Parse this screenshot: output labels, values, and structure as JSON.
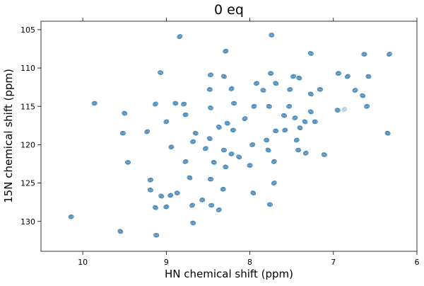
{
  "chart_data": {
    "type": "scatter",
    "subtype": "2D NMR contour spectrum (HSQC)",
    "title": "0 eq",
    "xlabel": "HN chemical shift (ppm)",
    "ylabel": "15N chemical shift (ppm)",
    "xlim": [
      10.5,
      6.0
    ],
    "ylim": [
      133.9,
      103.9
    ],
    "x_reversed": true,
    "y_reversed": true,
    "xticks": [
      "10",
      "9",
      "8",
      "7",
      "6"
    ],
    "xtick_values": [
      10,
      9,
      8,
      7,
      6
    ],
    "yticks": [
      "105",
      "110",
      "115",
      "120",
      "125",
      "130"
    ],
    "ytick_values": [
      105,
      110,
      115,
      120,
      125,
      130
    ],
    "grid": false,
    "colors": {
      "contour": "#3a7eb0",
      "weak_contour": "#a9cbe3"
    },
    "peaks": [
      [
        8.84,
        105.9
      ],
      [
        7.74,
        105.7
      ],
      [
        8.29,
        107.8
      ],
      [
        7.27,
        108.1
      ],
      [
        6.63,
        108.2
      ],
      [
        6.33,
        108.2
      ],
      [
        9.07,
        110.6
      ],
      [
        8.47,
        110.9
      ],
      [
        8.31,
        111.1
      ],
      [
        7.75,
        110.7
      ],
      [
        7.48,
        111.1
      ],
      [
        7.41,
        111.3
      ],
      [
        6.94,
        110.7
      ],
      [
        6.83,
        111.1
      ],
      [
        6.58,
        111.1
      ],
      [
        7.92,
        112.0
      ],
      [
        7.69,
        112.0
      ],
      [
        8.48,
        112.8
      ],
      [
        8.22,
        112.7
      ],
      [
        7.84,
        112.9
      ],
      [
        7.52,
        112.8
      ],
      [
        7.27,
        113.4
      ],
      [
        7.16,
        112.8
      ],
      [
        6.74,
        112.9
      ],
      [
        6.65,
        113.6
      ],
      [
        9.86,
        114.6
      ],
      [
        9.13,
        114.7
      ],
      [
        8.89,
        114.6
      ],
      [
        8.79,
        114.7
      ],
      [
        8.47,
        115.2
      ],
      [
        8.19,
        114.6
      ],
      [
        7.95,
        115.0
      ],
      [
        7.77,
        115.0
      ],
      [
        7.53,
        115.0
      ],
      [
        7.27,
        115.7
      ],
      [
        6.95,
        115.5
      ],
      [
        6.6,
        115.0
      ],
      [
        9.5,
        115.9
      ],
      [
        8.77,
        116.1
      ],
      [
        8.06,
        116.6
      ],
      [
        7.59,
        116.2
      ],
      [
        7.46,
        116.5
      ],
      [
        7.34,
        117.0
      ],
      [
        7.22,
        117.0
      ],
      [
        9.0,
        117.0
      ],
      [
        8.27,
        117.2
      ],
      [
        8.2,
        118.1
      ],
      [
        8.37,
        117.7
      ],
      [
        7.69,
        118.2
      ],
      [
        7.58,
        118.1
      ],
      [
        7.4,
        117.8
      ],
      [
        9.52,
        118.5
      ],
      [
        9.23,
        118.3
      ],
      [
        8.65,
        118.5
      ],
      [
        8.68,
        119.6
      ],
      [
        8.48,
        119.2
      ],
      [
        7.8,
        119.4
      ],
      [
        7.44,
        119.4
      ],
      [
        6.35,
        118.5
      ],
      [
        8.94,
        120.3
      ],
      [
        8.53,
        120.5
      ],
      [
        8.31,
        120.7
      ],
      [
        7.97,
        120.0
      ],
      [
        7.78,
        120.7
      ],
      [
        7.42,
        120.7
      ],
      [
        7.33,
        121.1
      ],
      [
        7.11,
        121.3
      ],
      [
        8.22,
        121.2
      ],
      [
        8.13,
        121.6
      ],
      [
        9.46,
        122.3
      ],
      [
        8.77,
        122.2
      ],
      [
        8.43,
        122.3
      ],
      [
        8.0,
        122.7
      ],
      [
        7.71,
        122.2
      ],
      [
        8.29,
        122.9
      ],
      [
        9.19,
        124.6
      ],
      [
        8.72,
        124.3
      ],
      [
        8.47,
        124.5
      ],
      [
        7.71,
        125.0
      ],
      [
        9.19,
        125.9
      ],
      [
        8.32,
        125.8
      ],
      [
        7.96,
        126.3
      ],
      [
        8.87,
        126.3
      ],
      [
        8.95,
        126.6
      ],
      [
        9.06,
        126.7
      ],
      [
        8.57,
        127.2
      ],
      [
        8.69,
        127.9
      ],
      [
        7.76,
        127.8
      ],
      [
        9.0,
        128.1
      ],
      [
        9.13,
        128.2
      ],
      [
        8.46,
        127.9
      ],
      [
        8.37,
        128.5
      ],
      [
        8.68,
        130.2
      ],
      [
        10.14,
        129.4
      ],
      [
        9.55,
        131.3
      ],
      [
        9.12,
        131.8
      ]
    ],
    "weak_peaks": [
      [
        6.87,
        115.4
      ]
    ]
  }
}
